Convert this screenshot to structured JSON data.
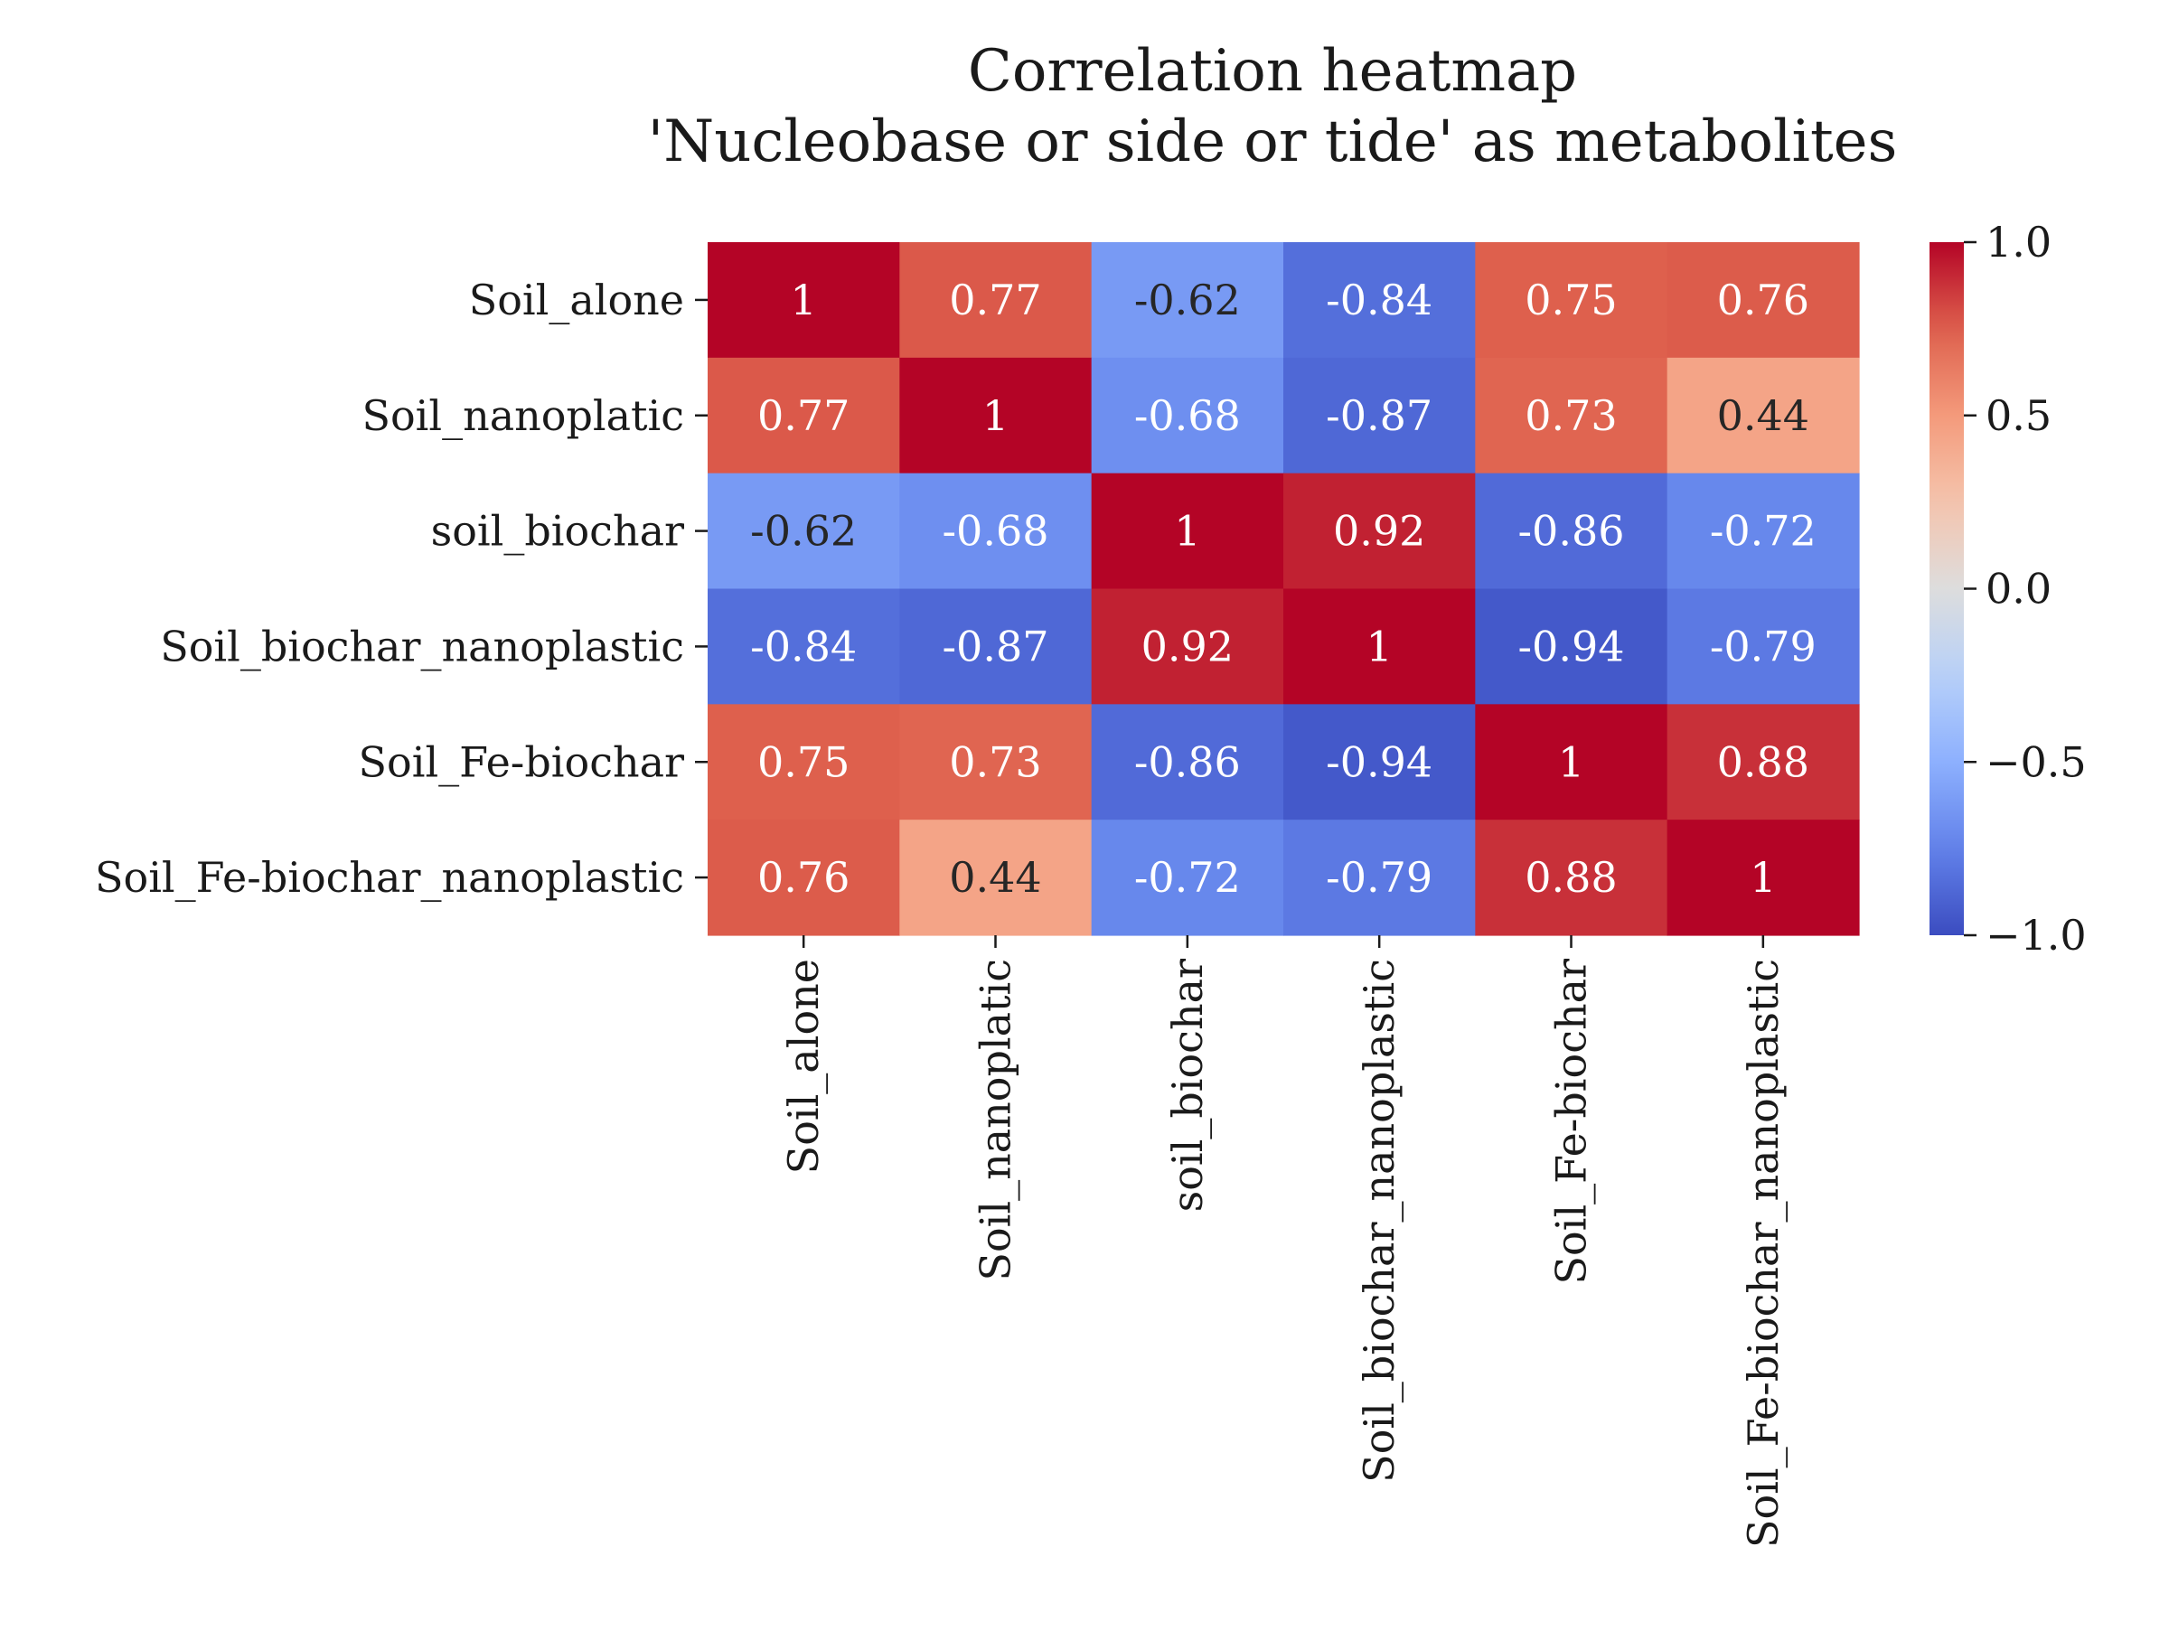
{
  "chart_data": {
    "type": "heatmap",
    "title": "Correlation heatmap",
    "subtitle": "'Nucleobase or side or tide' as metabolites",
    "rows": [
      "Soil_alone",
      "Soil_nanoplatic",
      "soil_biochar",
      "Soil_biochar_nanoplastic",
      "Soil_Fe-biochar",
      "Soil_Fe-biochar_nanoplastic"
    ],
    "columns": [
      "Soil_alone",
      "Soil_nanoplatic",
      "soil_biochar",
      "Soil_biochar_nanoplastic",
      "Soil_Fe-biochar",
      "Soil_Fe-biochar_nanoplastic"
    ],
    "values": [
      [
        1,
        0.77,
        -0.62,
        -0.84,
        0.75,
        0.76
      ],
      [
        0.77,
        1,
        -0.68,
        -0.87,
        0.73,
        0.44
      ],
      [
        -0.62,
        -0.68,
        1,
        0.92,
        -0.86,
        -0.72
      ],
      [
        -0.84,
        -0.87,
        0.92,
        1,
        -0.94,
        -0.79
      ],
      [
        0.75,
        0.73,
        -0.86,
        -0.94,
        1,
        0.88
      ],
      [
        0.76,
        0.44,
        -0.72,
        -0.79,
        0.88,
        1
      ]
    ],
    "cell_labels": [
      [
        "1",
        "0.77",
        "-0.62",
        "-0.84",
        "0.75",
        "0.76"
      ],
      [
        "0.77",
        "1",
        "-0.68",
        "-0.87",
        "0.73",
        "0.44"
      ],
      [
        "-0.62",
        "-0.68",
        "1",
        "0.92",
        "-0.86",
        "-0.72"
      ],
      [
        "-0.84",
        "-0.87",
        "0.92",
        "1",
        "-0.94",
        "-0.79"
      ],
      [
        "0.75",
        "0.73",
        "-0.86",
        "-0.94",
        "1",
        "0.88"
      ],
      [
        "0.76",
        "0.44",
        "-0.72",
        "-0.79",
        "0.88",
        "1"
      ]
    ],
    "colormap": "coolwarm",
    "vmin": -1.0,
    "vmax": 1.0,
    "colorbar_ticks": [
      1.0,
      0.5,
      0.0,
      -0.5,
      -1.0
    ],
    "colorbar_tick_labels": [
      "1.0",
      "0.5",
      "0.0",
      "−0.5",
      "−1.0"
    ],
    "grid": false,
    "colorbar_position": "right",
    "colors": {
      "low": "#3b4cc0",
      "mid": "#dddddd",
      "high": "#b40426",
      "text_dark": "#262626",
      "text_light": "#ffffff"
    }
  }
}
